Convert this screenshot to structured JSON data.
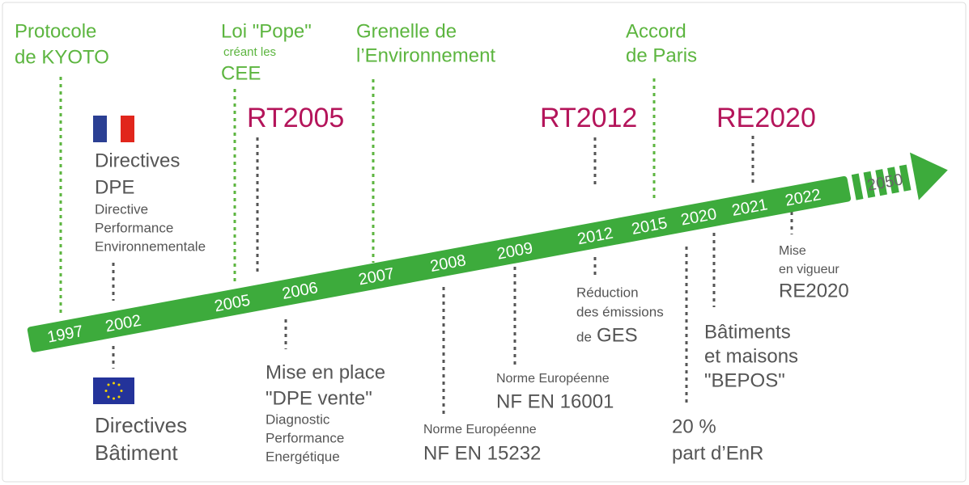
{
  "timeline": {
    "years": [
      "1997",
      "2002",
      "2005",
      "2006",
      "2007",
      "2008",
      "2009",
      "2012",
      "2015",
      "2020",
      "2021",
      "2022",
      "2050"
    ]
  },
  "events": [
    {
      "lines": [
        "Protocole",
        "de KYOTO"
      ]
    },
    {
      "lines": [
        "Loi \"Pope\"",
        "créant les",
        "CEE"
      ]
    },
    {
      "lines": [
        "Grenelle de",
        "l’Environnement"
      ]
    },
    {
      "lines": [
        "Accord",
        "de Paris"
      ]
    },
    {
      "lines": [
        "RT2005"
      ]
    },
    {
      "lines": [
        "RT2012"
      ]
    },
    {
      "lines": [
        "RE2020"
      ]
    },
    {
      "lines": [
        "Directives",
        "DPE",
        "Directive",
        "Performance",
        "Environnementale"
      ]
    },
    {
      "lines": [
        "Directives",
        "Bâtiment"
      ]
    },
    {
      "lines": [
        "Mise en place",
        "\"DPE vente\"",
        "Diagnostic",
        "Performance",
        "Energétique"
      ]
    },
    {
      "lines": [
        "Norme Européenne",
        "NF EN 15232"
      ]
    },
    {
      "lines": [
        "Norme Européenne",
        "NF EN 16001"
      ]
    },
    {
      "lines": [
        "Réduction",
        "des émissions",
        "de",
        "GES"
      ]
    },
    {
      "lines": [
        "20 %",
        "part d’EnR"
      ]
    },
    {
      "lines": [
        "Bâtiments",
        "et maisons",
        "\"BEPOS\""
      ]
    },
    {
      "lines": [
        "Mise",
        "en vigueur",
        "RE2020"
      ]
    }
  ]
}
